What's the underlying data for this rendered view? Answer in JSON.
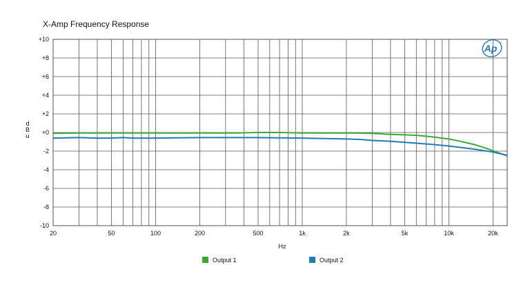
{
  "chart_data": {
    "type": "line",
    "title": "X-Amp Frequency Response",
    "xlabel": "Hz",
    "ylabel": "dBu",
    "xscale": "log",
    "xlim": [
      20,
      25000
    ],
    "ylim": [
      -10,
      10
    ],
    "grid": true,
    "legend_position": "bottom",
    "y_ticks": [
      "+10",
      "+8",
      "+6",
      "+4",
      "+2",
      "+0",
      "-2",
      "-4",
      "-6",
      "-8",
      "-10"
    ],
    "x_ticks": [
      {
        "value": 20,
        "label": "20"
      },
      {
        "value": 50,
        "label": "50"
      },
      {
        "value": 100,
        "label": "100"
      },
      {
        "value": 200,
        "label": "200"
      },
      {
        "value": 500,
        "label": "500"
      },
      {
        "value": 1000,
        "label": "1k"
      },
      {
        "value": 2000,
        "label": "2k"
      },
      {
        "value": 5000,
        "label": "5k"
      },
      {
        "value": 10000,
        "label": "10k"
      },
      {
        "value": 20000,
        "label": "20k"
      }
    ],
    "series": [
      {
        "name": "Output 1",
        "color": "#3aaa35",
        "x": [
          20,
          30,
          50,
          100,
          200,
          350,
          500,
          700,
          1000,
          2000,
          3000,
          4000,
          5000,
          6000,
          7000,
          8000,
          10000,
          12000,
          15000,
          18000,
          22000,
          25000
        ],
        "y": [
          -0.1,
          -0.05,
          -0.05,
          -0.05,
          -0.05,
          -0.05,
          0.0,
          0.0,
          -0.05,
          -0.05,
          -0.1,
          -0.2,
          -0.25,
          -0.3,
          -0.4,
          -0.5,
          -0.7,
          -0.95,
          -1.3,
          -1.7,
          -2.2,
          -2.5
        ]
      },
      {
        "name": "Output 2",
        "color": "#1f7ab8",
        "x": [
          20,
          30,
          40,
          50,
          60,
          70,
          100,
          200,
          500,
          1000,
          2000,
          2500,
          3000,
          4000,
          5000,
          6000,
          8000,
          10000,
          12000,
          15000,
          20000,
          25000
        ],
        "y": [
          -0.6,
          -0.55,
          -0.6,
          -0.6,
          -0.55,
          -0.6,
          -0.6,
          -0.55,
          -0.55,
          -0.6,
          -0.7,
          -0.75,
          -0.85,
          -0.95,
          -1.05,
          -1.15,
          -1.3,
          -1.45,
          -1.6,
          -1.8,
          -2.1,
          -2.45
        ]
      }
    ]
  },
  "logo": {
    "text": "Ap",
    "color": "#1f7ab8"
  }
}
